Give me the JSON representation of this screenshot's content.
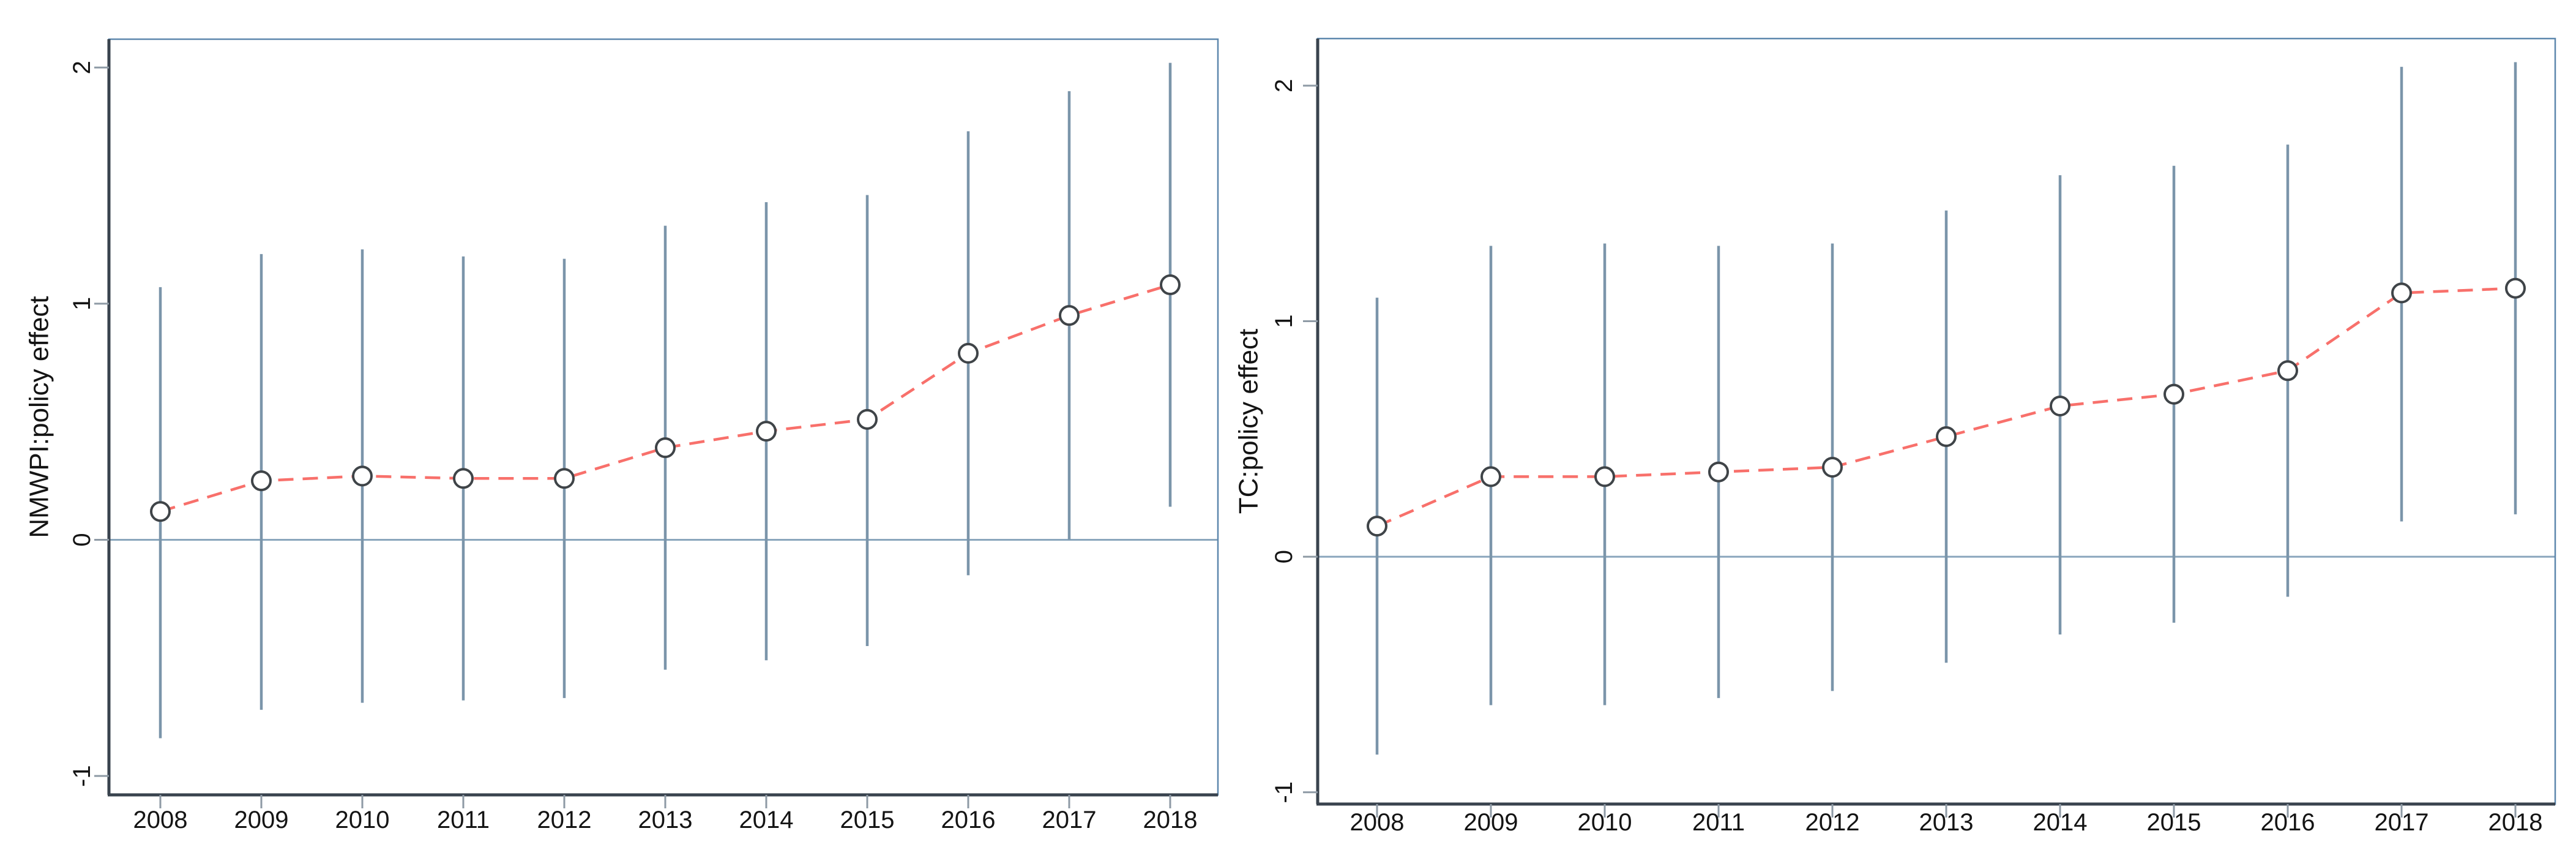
{
  "figure": {
    "description": "Two-panel event-study style plot of estimated policy effects by year with confidence intervals",
    "background": "#ffffff"
  },
  "colors": {
    "ci_bar": "#7b95aa",
    "trend_line": "#f8706b",
    "marker_fill": "#ffffff",
    "marker_stroke": "#3f4448",
    "zero_line": "#8aa6bd",
    "frame": "#5d87ad",
    "axis": "#39434e",
    "tick": "#8e9aa5",
    "text": "#141414"
  },
  "chart_data": [
    {
      "type": "line",
      "subtype": "point_estimates_with_confidence_intervals",
      "panel": "left",
      "title": "",
      "xlabel": "",
      "ylabel": "NMWPI:policy effect",
      "categories": [
        "2008",
        "2009",
        "2010",
        "2011",
        "2012",
        "2013",
        "2014",
        "2015",
        "2016",
        "2017",
        "2018"
      ],
      "series": [
        {
          "name": "point estimate",
          "values": [
            0.12,
            0.25,
            0.27,
            0.26,
            0.26,
            0.39,
            0.46,
            0.51,
            0.79,
            0.95,
            1.08
          ]
        },
        {
          "name": "CI lower",
          "values": [
            -0.84,
            -0.72,
            -0.69,
            -0.68,
            -0.67,
            -0.55,
            -0.51,
            -0.45,
            -0.15,
            0.0,
            0.14
          ]
        },
        {
          "name": "CI upper",
          "values": [
            1.07,
            1.21,
            1.23,
            1.2,
            1.19,
            1.33,
            1.43,
            1.46,
            1.73,
            1.9,
            2.02
          ]
        }
      ],
      "yticks": [
        -1,
        0,
        1,
        2
      ],
      "ylim": [
        -1.08,
        2.12
      ],
      "reference_line_y": 0,
      "grid": false,
      "legend": "none",
      "marker": "open-circle",
      "line_style": "dashed"
    },
    {
      "type": "line",
      "subtype": "point_estimates_with_confidence_intervals",
      "panel": "right",
      "title": "",
      "xlabel": "",
      "ylabel": "TC:policy effect",
      "categories": [
        "2008",
        "2009",
        "2010",
        "2011",
        "2012",
        "2013",
        "2014",
        "2015",
        "2016",
        "2017",
        "2018"
      ],
      "series": [
        {
          "name": "point estimate",
          "values": [
            0.13,
            0.34,
            0.34,
            0.36,
            0.38,
            0.51,
            0.64,
            0.69,
            0.79,
            1.12,
            1.14
          ]
        },
        {
          "name": "CI lower",
          "values": [
            -0.84,
            -0.63,
            -0.63,
            -0.6,
            -0.57,
            -0.45,
            -0.33,
            -0.28,
            -0.17,
            0.15,
            0.18
          ]
        },
        {
          "name": "CI upper",
          "values": [
            1.1,
            1.32,
            1.33,
            1.32,
            1.33,
            1.47,
            1.62,
            1.66,
            1.75,
            2.08,
            2.1
          ]
        }
      ],
      "yticks": [
        -1,
        0,
        1,
        2
      ],
      "ylim": [
        -1.05,
        2.2
      ],
      "reference_line_y": 0,
      "grid": false,
      "legend": "none",
      "marker": "open-circle",
      "line_style": "dashed"
    }
  ]
}
